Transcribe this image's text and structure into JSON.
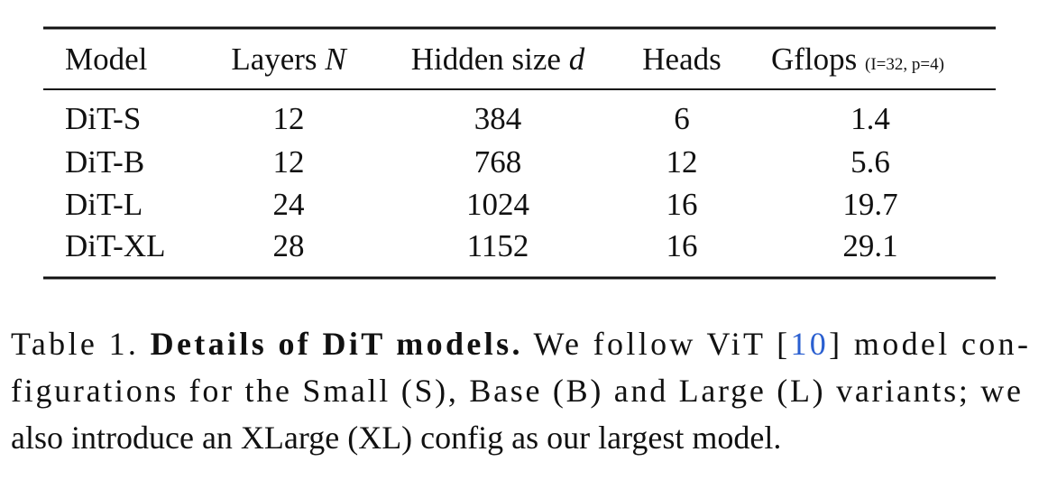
{
  "table": {
    "header": [
      {
        "label": "Model"
      },
      {
        "label": "Layers",
        "symbol": "N"
      },
      {
        "label": "Hidden size",
        "symbol": "d"
      },
      {
        "label": "Heads"
      },
      {
        "label": "Gflops",
        "note": "(I=32, p=4)"
      }
    ],
    "rows": [
      [
        "DiT-S",
        12,
        384,
        6,
        1.4
      ],
      [
        "DiT-B",
        12,
        768,
        12,
        5.6
      ],
      [
        "DiT-L",
        24,
        1024,
        16,
        19.7
      ],
      [
        "DiT-XL",
        28,
        1152,
        16,
        29.1
      ]
    ]
  },
  "caption": {
    "label": "Table 1.",
    "title": "Details of DiT models.",
    "text": "We follow ViT [",
    "ref": "10",
    "text_2": "] model con-",
    "line_2": "figurations for the Small (S), Base (B) and Large (L) variants; we",
    "line_3": "also introduce an XLarge (XL) config as our largest model."
  }
}
